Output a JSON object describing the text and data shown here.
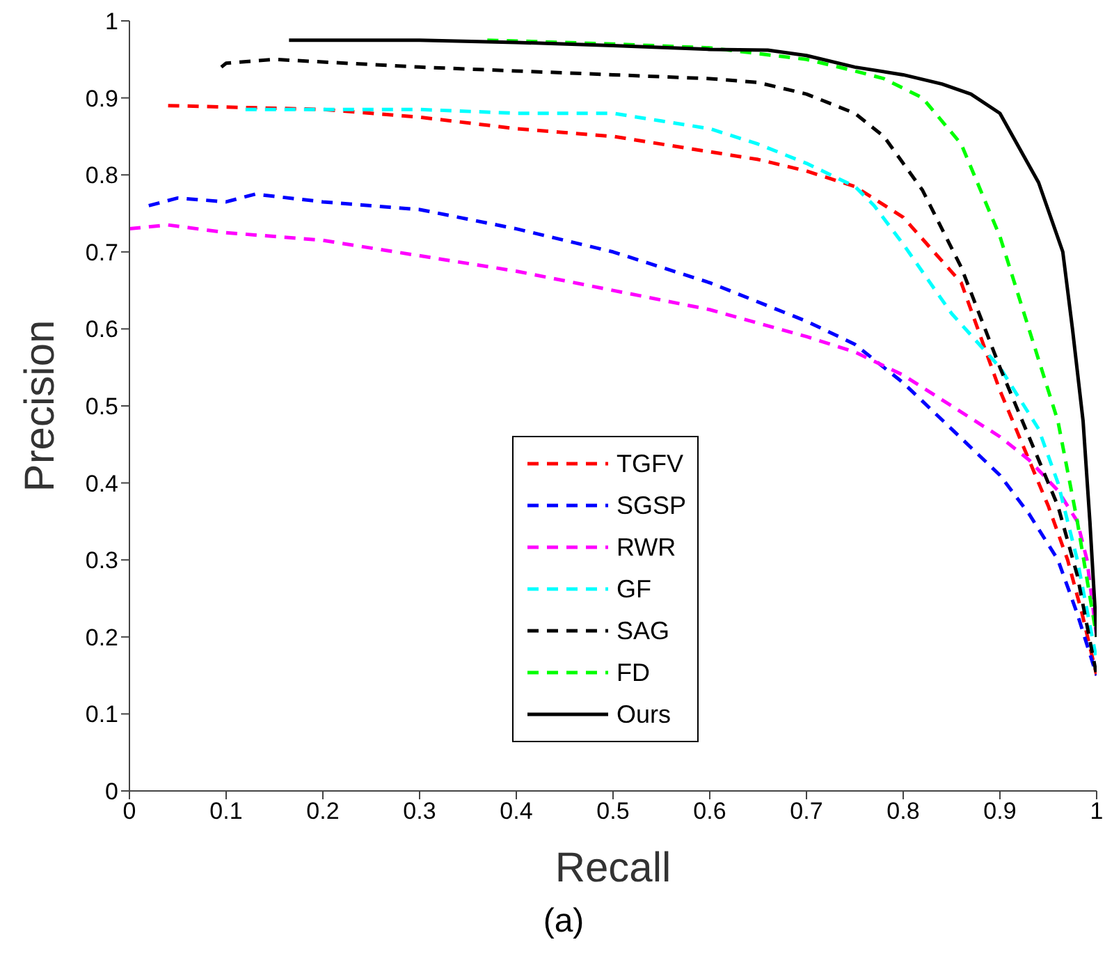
{
  "chart_data": {
    "type": "line",
    "xlabel": "Recall",
    "ylabel": "Precision",
    "annotations": [
      "(a)"
    ],
    "xlim": [
      0,
      1
    ],
    "ylim": [
      0,
      1
    ],
    "xticks": [
      0,
      0.1,
      0.2,
      0.3,
      0.4,
      0.5,
      0.6,
      0.7,
      0.8,
      0.9,
      1
    ],
    "yticks": [
      0,
      0.1,
      0.2,
      0.3,
      0.4,
      0.5,
      0.6,
      0.7,
      0.8,
      0.9,
      1
    ],
    "grid": false,
    "legend": "bottom",
    "marker": "none",
    "series": [
      {
        "name": "TGFV",
        "color": "#ff0000",
        "line_style": "dashed",
        "x": [
          0.04,
          0.2,
          0.3,
          0.4,
          0.5,
          0.6,
          0.65,
          0.7,
          0.75,
          0.8,
          0.86,
          0.9,
          0.93,
          0.95,
          0.97,
          0.985,
          1
        ],
        "values": [
          0.89,
          0.885,
          0.875,
          0.86,
          0.85,
          0.83,
          0.82,
          0.805,
          0.785,
          0.745,
          0.66,
          0.52,
          0.43,
          0.37,
          0.3,
          0.23,
          0.15
        ]
      },
      {
        "name": "SGSP",
        "color": "#0000ff",
        "line_style": "dashed",
        "x": [
          0.02,
          0.05,
          0.1,
          0.13,
          0.2,
          0.3,
          0.4,
          0.5,
          0.6,
          0.7,
          0.75,
          0.8,
          0.85,
          0.9,
          0.93,
          0.96,
          0.98,
          1
        ],
        "values": [
          0.76,
          0.77,
          0.765,
          0.775,
          0.765,
          0.755,
          0.73,
          0.7,
          0.66,
          0.61,
          0.58,
          0.53,
          0.47,
          0.41,
          0.36,
          0.3,
          0.23,
          0.15
        ]
      },
      {
        "name": "RWR",
        "color": "#ff00ff",
        "line_style": "dashed",
        "x": [
          0,
          0.04,
          0.1,
          0.2,
          0.3,
          0.4,
          0.5,
          0.6,
          0.7,
          0.75,
          0.8,
          0.85,
          0.9,
          0.93,
          0.96,
          0.98,
          0.99,
          1
        ],
        "values": [
          0.73,
          0.735,
          0.725,
          0.715,
          0.695,
          0.675,
          0.65,
          0.625,
          0.59,
          0.57,
          0.54,
          0.5,
          0.46,
          0.43,
          0.39,
          0.35,
          0.3,
          0.2
        ]
      },
      {
        "name": "GF",
        "color": "#00ffff",
        "line_style": "dashed",
        "x": [
          0.12,
          0.3,
          0.4,
          0.5,
          0.55,
          0.6,
          0.65,
          0.7,
          0.75,
          0.77,
          0.8,
          0.85,
          0.9,
          0.94,
          0.96,
          0.98,
          1
        ],
        "values": [
          0.885,
          0.885,
          0.88,
          0.88,
          0.87,
          0.86,
          0.84,
          0.815,
          0.785,
          0.76,
          0.71,
          0.62,
          0.55,
          0.47,
          0.4,
          0.3,
          0.17
        ]
      },
      {
        "name": "SAG",
        "color": "#000000",
        "line_style": "dashed",
        "x": [
          0.095,
          0.1,
          0.15,
          0.3,
          0.4,
          0.5,
          0.6,
          0.65,
          0.7,
          0.75,
          0.78,
          0.82,
          0.86,
          0.9,
          0.93,
          0.96,
          0.98,
          1
        ],
        "values": [
          0.94,
          0.945,
          0.95,
          0.94,
          0.935,
          0.93,
          0.925,
          0.92,
          0.905,
          0.88,
          0.85,
          0.78,
          0.68,
          0.55,
          0.46,
          0.37,
          0.28,
          0.15
        ]
      },
      {
        "name": "FD",
        "color": "#00ff00",
        "line_style": "dashed",
        "x": [
          0.37,
          0.5,
          0.6,
          0.7,
          0.75,
          0.78,
          0.82,
          0.86,
          0.9,
          0.93,
          0.96,
          0.98,
          1
        ],
        "values": [
          0.975,
          0.97,
          0.965,
          0.95,
          0.935,
          0.925,
          0.9,
          0.84,
          0.72,
          0.6,
          0.48,
          0.35,
          0.2
        ]
      },
      {
        "name": "Ours",
        "color": "#000000",
        "line_style": "solid",
        "x": [
          0.165,
          0.3,
          0.4,
          0.5,
          0.6,
          0.66,
          0.7,
          0.75,
          0.8,
          0.84,
          0.87,
          0.9,
          0.94,
          0.965,
          0.975,
          0.986,
          0.993,
          1
        ],
        "values": [
          0.975,
          0.975,
          0.972,
          0.968,
          0.963,
          0.962,
          0.955,
          0.94,
          0.93,
          0.918,
          0.905,
          0.88,
          0.79,
          0.7,
          0.6,
          0.48,
          0.35,
          0.2
        ]
      }
    ]
  }
}
